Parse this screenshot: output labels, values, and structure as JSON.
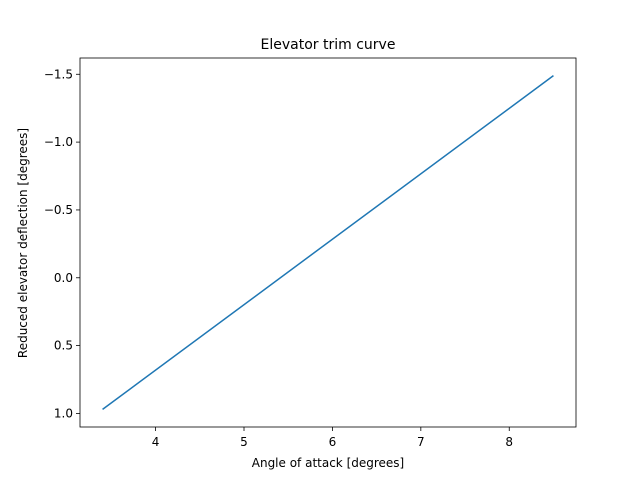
{
  "chart_data": {
    "type": "line",
    "title": "Elevator trim curve",
    "xlabel": "Angle of attack [degrees]",
    "ylabel": "Reduced elevator deflection [degrees]",
    "xlim": [
      3.145,
      8.755
    ],
    "ylim": [
      1.1,
      -1.62
    ],
    "y_inverted": true,
    "grid": false,
    "legend": "none",
    "x_ticks": [
      4,
      5,
      6,
      7,
      8
    ],
    "x_tick_labels": [
      "4",
      "5",
      "6",
      "7",
      "8"
    ],
    "y_ticks": [
      -1.5,
      -1.0,
      -0.5,
      0.0,
      0.5,
      1.0
    ],
    "y_tick_labels": [
      "−1.5",
      "−1.0",
      "−0.5",
      "0.0",
      "0.5",
      "1.0"
    ],
    "series": [
      {
        "color": "#1f77b4",
        "x": [
          3.4,
          8.5
        ],
        "y": [
          0.97,
          -1.49
        ]
      }
    ]
  }
}
